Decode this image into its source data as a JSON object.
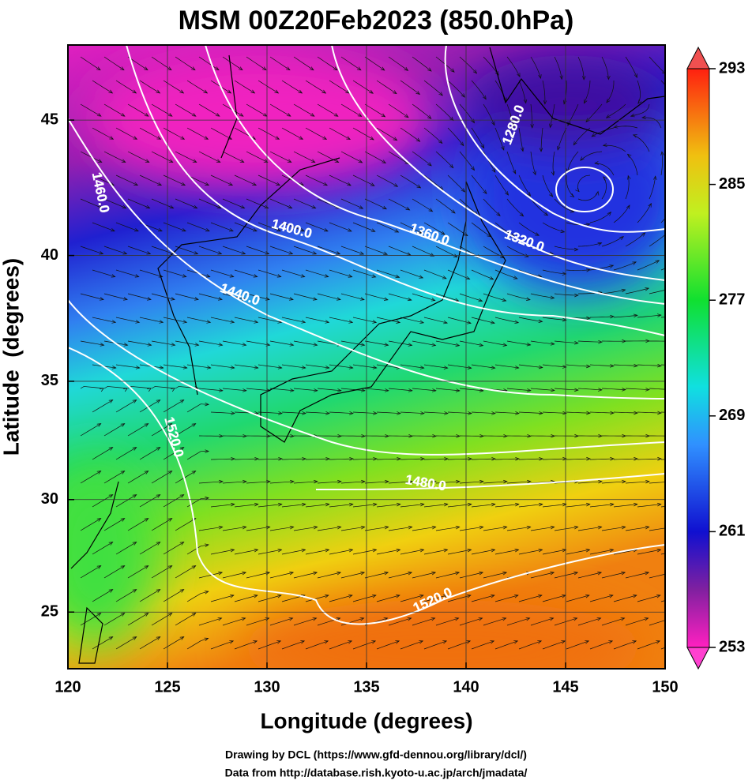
{
  "title": "MSM 00Z20Feb2023 (850.0hPa)",
  "x_axis": {
    "label": "Longitude (degrees)",
    "lim": [
      120,
      150
    ],
    "ticks": [
      120,
      125,
      130,
      135,
      140,
      145,
      150
    ]
  },
  "y_axis": {
    "label": "Latitude  (degrees)",
    "lim": [
      22.4,
      47.6
    ],
    "ticks": [
      25,
      30,
      35,
      40,
      45
    ],
    "projection": "mercator"
  },
  "colorbar": {
    "lim": [
      253,
      293
    ],
    "ticks": [
      253,
      261,
      269,
      277,
      285,
      293
    ]
  },
  "contour_labels": [
    "1280.0",
    "1320.0",
    "1360.0",
    "1400.0",
    "1440.0",
    "1460.0",
    "1480.0",
    "1520.0",
    "1520.0"
  ],
  "credits": [
    "Drawing by DCL (https://www.gfd-dennou.org/library/dcl/)",
    "Data from http://database.rish.kyoto-u.ac.jp/arch/jmadata/"
  ]
}
